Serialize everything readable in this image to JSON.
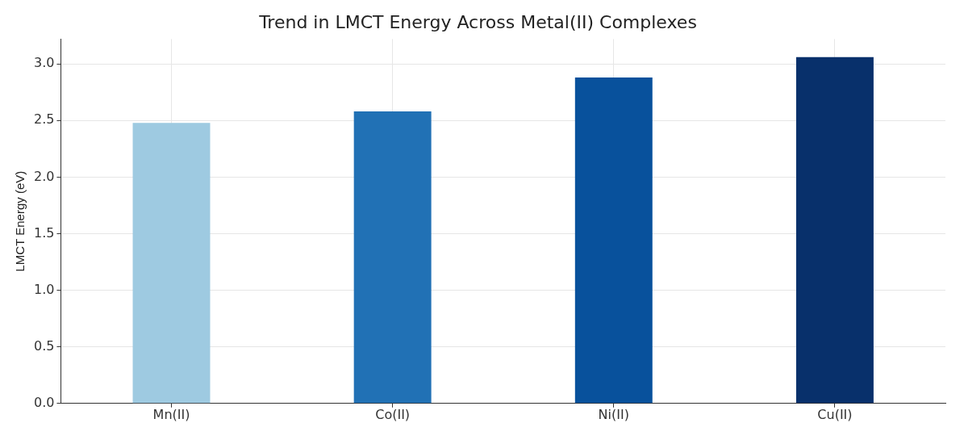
{
  "chart_data": {
    "type": "bar",
    "title": "Trend in LMCT Energy Across Metal(II) Complexes",
    "ylabel": "LMCT Energy (eV)",
    "categories": [
      "Mn(II)",
      "Co(II)",
      "Ni(II)",
      "Cu(II)"
    ],
    "values": [
      2.48,
      2.58,
      2.88,
      3.06
    ],
    "colors": [
      "#9ecae1",
      "#2171b5",
      "#08519c",
      "#08306b"
    ],
    "ylim": [
      0,
      3.22
    ],
    "yticks": [
      {
        "value": 0,
        "label": "0.0"
      },
      {
        "value": 0.5,
        "label": "0.5"
      },
      {
        "value": 1,
        "label": "1.0"
      },
      {
        "value": 1.5,
        "label": "1.5"
      },
      {
        "value": 2,
        "label": "2.0"
      },
      {
        "value": 2.5,
        "label": "2.5"
      },
      {
        "value": 3,
        "label": "3.0"
      }
    ],
    "grid": true
  }
}
